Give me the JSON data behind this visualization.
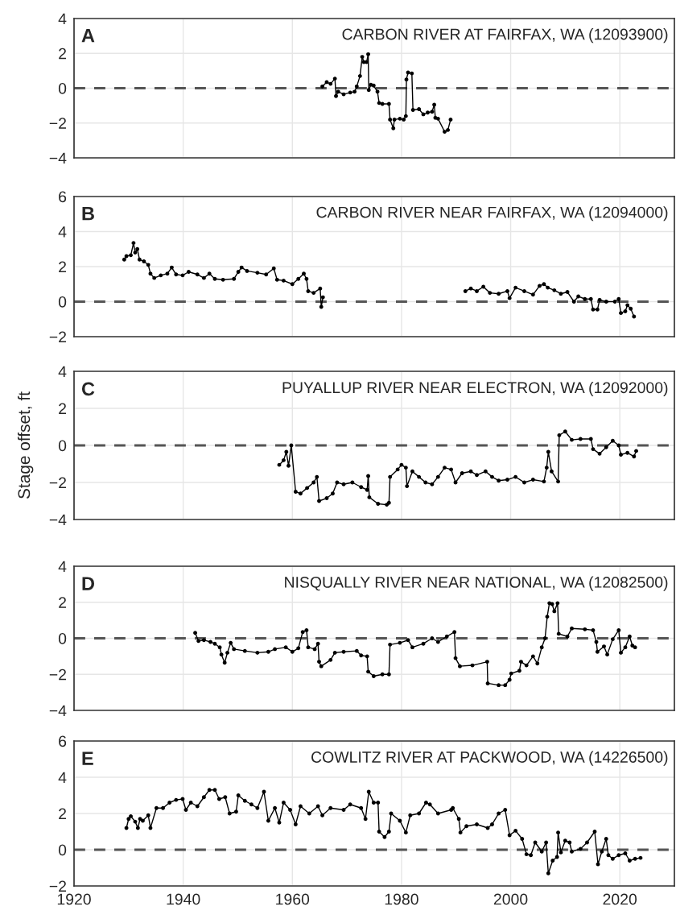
{
  "chart_data": [
    {
      "type": "line",
      "title": "CARBON RIVER AT FAIRFAX, WA (12093900)",
      "annotations": [
        "A"
      ],
      "marker": "circle",
      "grid": true,
      "tick_labels": "y",
      "xlim": [
        1920,
        2030
      ],
      "xticks": [
        1920,
        1940,
        1960,
        1980,
        2000,
        2020
      ],
      "ylim": [
        -4,
        4
      ],
      "yticks": [
        -4,
        -2,
        0,
        2,
        4
      ],
      "ref_lines": [
        {
          "axis": "y",
          "value": 0,
          "color": "#555555",
          "line_style": "dashed"
        }
      ],
      "series": [
        {
          "color": "#000000",
          "x": [
            1965.5,
            1966.3,
            1967.0,
            1967.8,
            1968.0,
            1968.4,
            1969.4,
            1970.6,
            1971.4,
            1971.8,
            1972.4,
            1972.8,
            1973.1,
            1973.6,
            1973.9,
            1974.0,
            1974.4,
            1974.9,
            1975.6,
            1975.9,
            1976.5,
            1977.7,
            1977.9,
            1978.5,
            1978.7,
            1979.7,
            1980.4,
            1980.8,
            1980.9,
            1981.2,
            1981.9,
            1982.1,
            1983.2,
            1984.0,
            1984.8,
            1985.6,
            1986.0,
            1986.2,
            1986.7,
            1987.9,
            1988.5,
            1989.0
          ],
          "values": [
            0.1,
            0.35,
            0.25,
            0.55,
            -0.45,
            -0.2,
            -0.35,
            -0.25,
            -0.2,
            0.1,
            0.7,
            1.8,
            1.5,
            1.5,
            1.95,
            -0.1,
            0.2,
            0.15,
            -0.2,
            -0.85,
            -0.9,
            -0.9,
            -1.8,
            -2.3,
            -1.8,
            -1.75,
            -1.8,
            -1.6,
            0.5,
            0.9,
            0.85,
            -1.25,
            -1.2,
            -1.5,
            -1.4,
            -1.35,
            -0.95,
            -1.7,
            -1.75,
            -2.5,
            -2.4,
            -1.8
          ]
        }
      ]
    },
    {
      "type": "line",
      "title": "CARBON RIVER NEAR FAIRFAX, WA (12094000)",
      "annotations": [
        "B"
      ],
      "marker": "circle",
      "grid": true,
      "tick_labels": "y",
      "xlim": [
        1920,
        2030
      ],
      "xticks": [
        1920,
        1940,
        1960,
        1980,
        2000,
        2020
      ],
      "ylim": [
        -2,
        6
      ],
      "yticks": [
        -2,
        0,
        2,
        4,
        6
      ],
      "ref_lines": [
        {
          "axis": "y",
          "value": 0,
          "color": "#555555",
          "line_style": "dashed"
        }
      ],
      "series": [
        {
          "color": "#000000",
          "x": [
            1929.2,
            1929.6,
            1930.4,
            1930.9,
            1931.2,
            1931.6,
            1932.0,
            1932.8,
            1933.6,
            1934.0,
            1934.7,
            1935.9,
            1937.1,
            1937.9,
            1938.7,
            1939.9,
            1941.0,
            1942.6,
            1943.8,
            1944.8,
            1945.8,
            1947.3,
            1949.3,
            1950.1,
            1950.7,
            1951.7,
            1953.6,
            1955.2,
            1956.6,
            1957.2,
            1958.4,
            1960.0,
            1961.1,
            1962.1,
            1962.6,
            1962.9,
            1963.9,
            1965.1,
            1965.3,
            1965.6,
            1978.0,
            1991.7,
            1992.7,
            1993.8,
            1995.0,
            1996.2,
            1997.8,
            1999.4,
            1999.8,
            2000.9,
            2002.5,
            2004.1,
            2005.3,
            2006.1,
            2006.8,
            2008.0,
            2009.2,
            2010.4,
            2011.6,
            2012.4,
            2013.6,
            2014.7,
            2015.1,
            2015.9,
            2016.3,
            2017.5,
            2019.1,
            2019.8,
            2020.2,
            2021.0,
            2021.4,
            2022.0,
            2022.6
          ],
          "values": [
            2.4,
            2.6,
            2.65,
            3.35,
            2.8,
            3.0,
            2.4,
            2.3,
            2.1,
            1.6,
            1.35,
            1.5,
            1.6,
            1.95,
            1.55,
            1.5,
            1.7,
            1.55,
            1.35,
            1.6,
            1.3,
            1.25,
            1.3,
            1.7,
            1.95,
            1.75,
            1.65,
            1.55,
            1.9,
            1.25,
            1.2,
            1.0,
            1.3,
            1.6,
            1.3,
            0.6,
            0.5,
            0.75,
            -0.3,
            0.25,
            null,
            0.6,
            0.75,
            0.6,
            0.85,
            0.5,
            0.45,
            0.6,
            0.2,
            0.8,
            0.6,
            0.4,
            0.9,
            1.0,
            0.8,
            0.65,
            0.45,
            0.55,
            0.0,
            0.3,
            0.15,
            0.15,
            -0.45,
            -0.45,
            0.1,
            0.0,
            0.0,
            0.15,
            -0.65,
            -0.55,
            -0.2,
            -0.4,
            -0.85
          ]
        }
      ]
    },
    {
      "type": "line",
      "title": "PUYALLUP RIVER NEAR ELECTRON, WA (12092000)",
      "ylabel": "Stage offset, ft",
      "annotations": [
        "C"
      ],
      "marker": "circle",
      "grid": true,
      "tick_labels": "y",
      "xlim": [
        1920,
        2030
      ],
      "xticks": [
        1920,
        1940,
        1960,
        1980,
        2000,
        2020
      ],
      "ylim": [
        -4,
        4
      ],
      "yticks": [
        -4,
        -2,
        0,
        2,
        4
      ],
      "ref_lines": [
        {
          "axis": "y",
          "value": 0,
          "color": "#555555",
          "line_style": "dashed"
        }
      ],
      "series": [
        {
          "color": "#000000",
          "x": [
            1957.6,
            1958.4,
            1958.9,
            1959.3,
            1959.8,
            1960.6,
            1961.5,
            1962.7,
            1963.9,
            1964.5,
            1964.9,
            1966.3,
            1967.4,
            1968.2,
            1969.4,
            1971.0,
            1972.6,
            1973.7,
            1973.9,
            1974.1,
            1975.7,
            1977.3,
            1977.7,
            1977.9,
            1979.3,
            1980.0,
            1980.8,
            1981.0,
            1982.0,
            1983.2,
            1984.4,
            1985.6,
            1986.7,
            1987.9,
            1989.1,
            1989.9,
            1991.1,
            1992.7,
            1993.8,
            1995.4,
            1996.6,
            1997.8,
            1999.4,
            2000.9,
            2002.5,
            2004.1,
            2006.1,
            2006.6,
            2006.9,
            2007.5,
            2008.7,
            2008.9,
            2010.0,
            2011.2,
            2012.8,
            2014.7,
            2015.1,
            2016.3,
            2017.5,
            2018.7,
            2019.8,
            2020.2,
            2021.4,
            2022.6,
            2023.0
          ],
          "values": [
            -1.05,
            -0.8,
            -0.35,
            -1.1,
            0.0,
            -2.5,
            -2.6,
            -2.3,
            -2.0,
            -1.7,
            -3.0,
            -2.85,
            -2.6,
            -2.0,
            -2.1,
            -2.0,
            -2.25,
            -2.4,
            -1.65,
            -2.8,
            -3.15,
            -3.2,
            -3.1,
            -1.7,
            -1.3,
            -1.05,
            -1.2,
            -2.2,
            -1.4,
            -1.7,
            -2.0,
            -2.1,
            -1.7,
            -1.2,
            -1.3,
            -2.0,
            -1.5,
            -1.4,
            -1.6,
            -1.4,
            -1.7,
            -1.9,
            -1.85,
            -1.7,
            -2.0,
            -1.85,
            -1.95,
            -1.2,
            -0.35,
            -1.4,
            -1.95,
            0.55,
            0.75,
            0.3,
            0.35,
            0.35,
            -0.2,
            -0.45,
            -0.1,
            0.25,
            0.0,
            -0.5,
            -0.4,
            -0.6,
            -0.3
          ]
        }
      ]
    },
    {
      "type": "line",
      "title": "NISQUALLY RIVER NEAR NATIONAL, WA (12082500)",
      "annotations": [
        "D"
      ],
      "marker": "circle",
      "grid": true,
      "tick_labels": "y",
      "xlim": [
        1920,
        2030
      ],
      "xticks": [
        1920,
        1940,
        1960,
        1980,
        2000,
        2020
      ],
      "ylim": [
        -4,
        4
      ],
      "yticks": [
        -4,
        -2,
        0,
        2,
        4
      ],
      "ref_lines": [
        {
          "axis": "y",
          "value": 0,
          "color": "#555555",
          "line_style": "dashed"
        }
      ],
      "series": [
        {
          "color": "#000000",
          "x": [
            1942.2,
            1942.8,
            1943.8,
            1945.0,
            1945.8,
            1946.7,
            1947.0,
            1947.6,
            1948.1,
            1948.7,
            1949.3,
            1951.3,
            1953.6,
            1955.6,
            1956.8,
            1958.8,
            1960.0,
            1961.1,
            1961.9,
            1962.6,
            1962.9,
            1964.1,
            1964.7,
            1964.9,
            1965.3,
            1967.0,
            1967.8,
            1969.4,
            1971.8,
            1972.6,
            1973.7,
            1973.9,
            1974.9,
            1976.5,
            1977.7,
            1977.9,
            1979.7,
            1981.2,
            1982.0,
            1984.0,
            1985.6,
            1986.7,
            1988.3,
            1989.7,
            1989.9,
            1990.7,
            1993.0,
            1995.7,
            1995.8,
            1997.8,
            1999.0,
            1999.8,
            2000.1,
            2001.6,
            2001.9,
            2002.9,
            2004.1,
            2004.9,
            2005.7,
            2006.3,
            2006.7,
            2007.1,
            2007.6,
            2008.0,
            2008.6,
            2008.8,
            2010.4,
            2011.2,
            2013.6,
            2015.1,
            2015.7,
            2015.9,
            2017.1,
            2017.7,
            2018.7,
            2019.8,
            2020.2,
            2021.0,
            2021.8,
            2022.3,
            2022.8
          ],
          "values": [
            0.3,
            -0.15,
            -0.1,
            -0.2,
            -0.3,
            -0.5,
            -0.9,
            -1.35,
            -0.8,
            -0.25,
            -0.6,
            -0.7,
            -0.8,
            -0.75,
            -0.6,
            -0.5,
            -0.75,
            -0.55,
            0.35,
            0.45,
            -0.5,
            -0.6,
            -0.3,
            -1.3,
            -1.55,
            -1.2,
            -0.8,
            -0.75,
            -0.7,
            -0.95,
            -1.0,
            -1.85,
            -2.1,
            -2.0,
            -2.0,
            -0.35,
            -0.25,
            -0.1,
            -0.5,
            -0.3,
            0.0,
            -0.2,
            0.1,
            0.35,
            -1.1,
            -1.55,
            -1.5,
            -1.3,
            -2.5,
            -2.6,
            -2.6,
            -2.3,
            -1.95,
            -1.8,
            -1.3,
            -1.5,
            -1.0,
            -1.4,
            -0.5,
            0.0,
            1.2,
            1.95,
            1.9,
            1.5,
            1.95,
            0.25,
            0.1,
            0.55,
            0.5,
            0.45,
            -0.2,
            -0.75,
            -0.45,
            -0.9,
            -0.05,
            0.45,
            -0.8,
            -0.5,
            0.1,
            -0.4,
            -0.5
          ]
        }
      ]
    },
    {
      "type": "line",
      "title": "COWLITZ RIVER AT PACKWOOD, WA (14226500)",
      "annotations": [
        "E"
      ],
      "marker": "circle",
      "grid": true,
      "xlim": [
        1920,
        2030
      ],
      "xticks": [
        1920,
        1940,
        1960,
        1980,
        2000,
        2020
      ],
      "ylim": [
        -2,
        6
      ],
      "yticks": [
        -2,
        0,
        2,
        4,
        6
      ],
      "ref_lines": [
        {
          "axis": "y",
          "value": 0,
          "color": "#555555",
          "line_style": "dashed"
        }
      ],
      "series": [
        {
          "color": "#000000",
          "x": [
            1929.6,
            1930.0,
            1930.4,
            1931.2,
            1931.7,
            1932.1,
            1932.6,
            1933.6,
            1934.0,
            1935.1,
            1936.3,
            1937.5,
            1938.7,
            1939.9,
            1940.5,
            1941.4,
            1942.6,
            1943.8,
            1944.8,
            1945.8,
            1946.6,
            1947.7,
            1948.5,
            1949.7,
            1950.1,
            1951.3,
            1952.5,
            1953.6,
            1954.8,
            1955.6,
            1956.8,
            1957.6,
            1958.4,
            1959.6,
            1960.6,
            1961.5,
            1963.1,
            1964.7,
            1965.5,
            1967.0,
            1969.4,
            1970.6,
            1972.6,
            1973.4,
            1974.0,
            1974.9,
            1975.7,
            1975.9,
            1976.9,
            1977.7,
            1978.1,
            1979.7,
            1980.8,
            1981.6,
            1983.2,
            1984.5,
            1985.2,
            1986.7,
            1989.1,
            1989.4,
            1990.5,
            1990.8,
            1991.9,
            1993.8,
            1995.8,
            1996.6,
            1997.8,
            1999.0,
            1999.8,
            2000.9,
            2002.1,
            2002.9,
            2003.7,
            2004.5,
            2005.7,
            2006.5,
            2006.9,
            2007.7,
            2008.5,
            2008.7,
            2009.2,
            2010.0,
            2010.8,
            2011.2,
            2012.8,
            2014.0,
            2015.4,
            2016.0,
            2016.7,
            2017.5,
            2017.9,
            2018.7,
            2019.8,
            2021.0,
            2021.8,
            2022.8,
            2023.8
          ],
          "values": [
            1.2,
            1.7,
            1.85,
            1.55,
            1.2,
            1.7,
            1.6,
            1.9,
            1.2,
            2.3,
            2.3,
            2.6,
            2.75,
            2.8,
            2.2,
            2.6,
            2.4,
            2.9,
            3.3,
            3.3,
            2.8,
            2.9,
            2.0,
            2.1,
            3.0,
            2.7,
            2.5,
            2.3,
            3.2,
            1.6,
            2.3,
            1.5,
            2.6,
            2.2,
            1.4,
            2.4,
            2.0,
            2.4,
            1.9,
            2.3,
            2.2,
            2.5,
            2.3,
            1.7,
            3.2,
            2.6,
            2.6,
            1.0,
            0.7,
            1.0,
            2.0,
            1.6,
            0.95,
            1.9,
            2.0,
            2.6,
            2.5,
            2.0,
            2.2,
            2.3,
            1.7,
            0.95,
            1.3,
            1.4,
            1.2,
            1.4,
            2.0,
            2.2,
            0.8,
            1.05,
            0.6,
            -0.25,
            -0.3,
            0.4,
            -0.1,
            0.4,
            -1.3,
            -0.6,
            -0.4,
            0.95,
            -0.15,
            0.5,
            0.4,
            -0.1,
            0.05,
            0.4,
            1.0,
            -0.8,
            -0.1,
            0.6,
            -0.3,
            -0.5,
            -0.3,
            -0.2,
            -0.6,
            -0.5,
            -0.45
          ]
        }
      ]
    }
  ]
}
